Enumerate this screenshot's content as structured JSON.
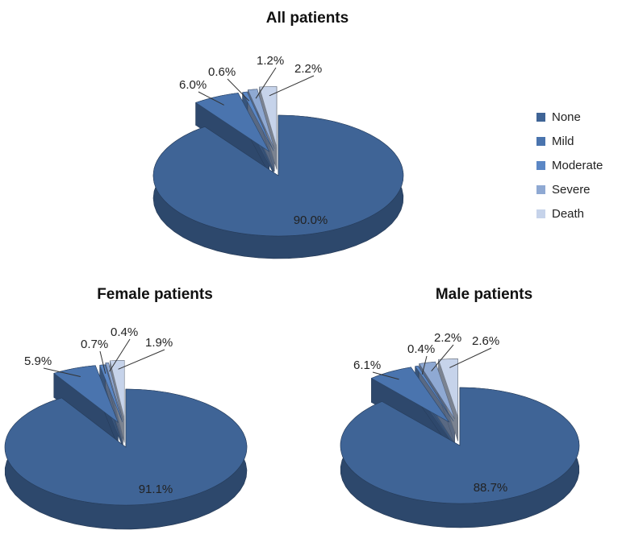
{
  "figure": {
    "legend_position": "right"
  },
  "legend": {
    "items": [
      {
        "label": "None",
        "color": "#3F6496"
      },
      {
        "label": "Mild",
        "color": "#4A74AE"
      },
      {
        "label": "Moderate",
        "color": "#5B87C5"
      },
      {
        "label": "Severe",
        "color": "#8FA9D3"
      },
      {
        "label": "Death",
        "color": "#C6D3EA"
      }
    ]
  },
  "chart_data": [
    {
      "type": "pie",
      "title": "All patients",
      "categories": [
        "None",
        "Mild",
        "Moderate",
        "Severe",
        "Death"
      ],
      "values": [
        90.0,
        6.0,
        0.6,
        1.2,
        2.2
      ],
      "labels": [
        "90.0%",
        "6.0%",
        "0.6%",
        "1.2%",
        "2.2%"
      ]
    },
    {
      "type": "pie",
      "title": "Female patients",
      "categories": [
        "None",
        "Mild",
        "Moderate",
        "Severe",
        "Death"
      ],
      "values": [
        91.1,
        5.9,
        0.7,
        0.4,
        1.9
      ],
      "labels": [
        "91.1%",
        "5.9%",
        "0.7%",
        "0.4%",
        "1.9%"
      ]
    },
    {
      "type": "pie",
      "title": "Male patients",
      "categories": [
        "None",
        "Mild",
        "Moderate",
        "Severe",
        "Death"
      ],
      "values": [
        88.7,
        6.1,
        0.4,
        2.2,
        2.6
      ],
      "labels": [
        "88.7%",
        "6.1%",
        "0.4%",
        "2.2%",
        "2.6%"
      ]
    }
  ]
}
